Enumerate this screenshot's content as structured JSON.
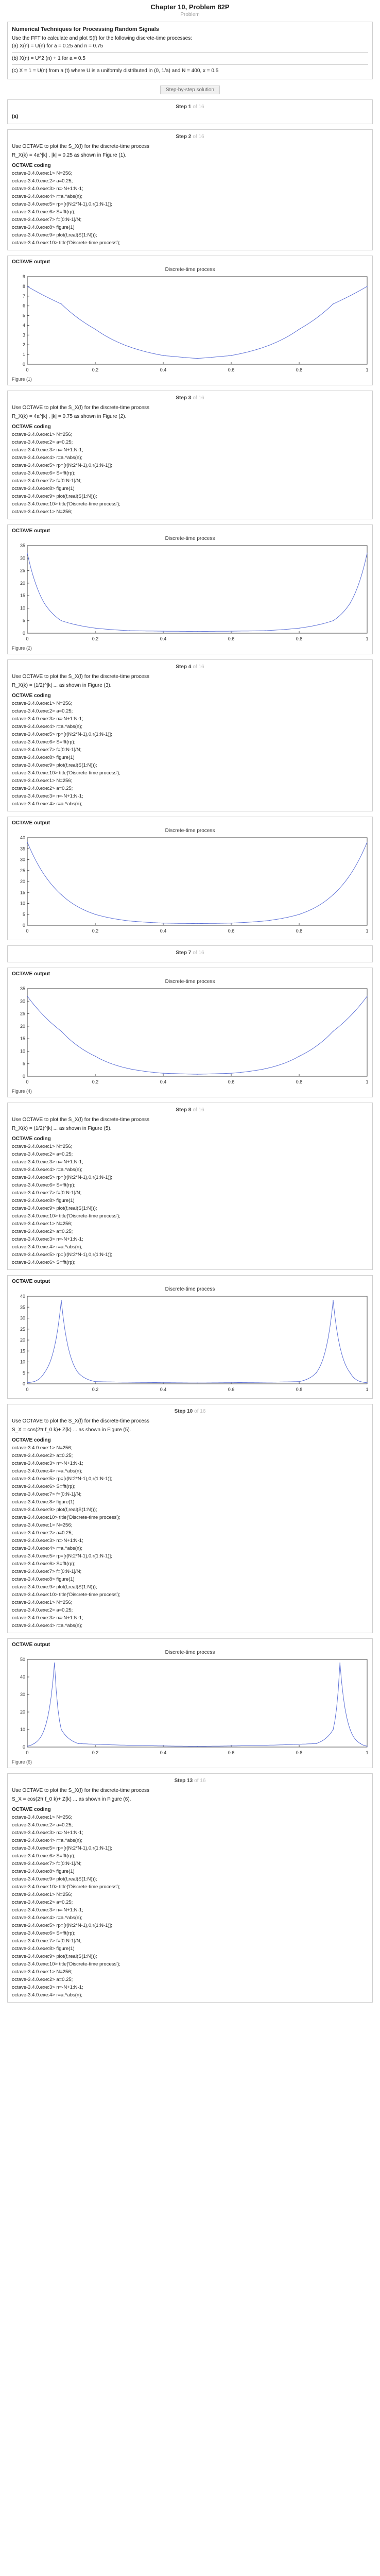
{
  "header": {
    "chapter_title": "Chapter 10, Problem 82P",
    "problem_label": "Problem"
  },
  "problem": {
    "heading": "Numerical Techniques for Processing Random Signals",
    "lines": [
      "Use the FFT to calculate and plot S(f) for the following discrete-time processes:",
      "(a) X(n) = U(n) for a = 0.25 and n = 0.75"
    ],
    "lines2": [
      "(b) X(n) = U^2 (n) + 1 for a = 0.5",
      "(c) X = 1 = U(n) from a (t) where U is a uniformly distributed in (0, 1/a) and N = 400, x = 0.5"
    ]
  },
  "toggle_label": "Step-by-step solution",
  "steps": [
    {
      "num": "Step 1",
      "of": "of 16",
      "body": [
        {
          "kind": "tag",
          "text": "(a)"
        }
      ]
    },
    {
      "num": "Step 2",
      "of": "of 16",
      "body": [
        {
          "kind": "text",
          "text": "Use OCTAVE to plot the  S_X(f) for the discrete-time process"
        },
        {
          "kind": "formula",
          "text": "R_X(k) = 4a^|k| ,  |k| = 0.25  as shown in Figure (1)."
        },
        {
          "kind": "sub",
          "text": "OCTAVE coding"
        },
        {
          "kind": "code",
          "text": "octave-3.4.0.exe:1> N=256;"
        },
        {
          "kind": "code",
          "text": "octave-3.4.0.exe:2> a=0.25;"
        },
        {
          "kind": "code",
          "text": "octave-3.4.0.exe:3> n=-N+1:N-1;"
        },
        {
          "kind": "code",
          "text": "octave-3.4.0.exe:4> r=a.^abs(n);"
        },
        {
          "kind": "code",
          "text": "octave-3.4.0.exe:5> rp=[r(N:2*N-1),0,r(1:N-1)];"
        },
        {
          "kind": "code",
          "text": "octave-3.4.0.exe:6> S=fft(rp);"
        },
        {
          "kind": "code",
          "text": "octave-3.4.0.exe:7> f=[0:N-1]/N;"
        },
        {
          "kind": "code",
          "text": "octave-3.4.0.exe:8> figure(1)"
        },
        {
          "kind": "code",
          "text": "octave-3.4.0.exe:9> plot(f,real(S(1:N)));"
        },
        {
          "kind": "code",
          "text": "octave-3.4.0.exe:10> title('Discrete-time process');"
        }
      ]
    }
  ],
  "output_label": "OCTAVE output",
  "charts": [
    {
      "title": "Discrete-time process",
      "caption": "Figure (1)",
      "y_ticks": [
        "0",
        "1",
        "2",
        "3",
        "4",
        "5",
        "6",
        "7",
        "8",
        "9"
      ],
      "x_ticks": [
        "0",
        "0.2",
        "0.4",
        "0.6",
        "0.8",
        "1"
      ]
    },
    {
      "title": "Discrete-time process",
      "caption": "Figure (2)",
      "y_ticks": [
        "0",
        "5",
        "10",
        "15",
        "20",
        "25",
        "30",
        "35"
      ],
      "x_ticks": [
        "0",
        "0.2",
        "0.4",
        "0.6",
        "0.8",
        "1"
      ]
    },
    {
      "title": "Discrete-time process",
      "caption": "",
      "y_ticks": [
        "0",
        "5",
        "10",
        "15",
        "20",
        "25",
        "30",
        "35",
        "40"
      ],
      "x_ticks": [
        "0",
        "0.2",
        "0.4",
        "0.6",
        "0.8",
        "1"
      ]
    },
    {
      "title": "Discrete-time process",
      "caption": "Figure (4)",
      "y_ticks": [
        "0",
        "5",
        "10",
        "15",
        "20",
        "25",
        "30",
        "35"
      ],
      "x_ticks": [
        "0",
        "0.2",
        "0.4",
        "0.6",
        "0.8",
        "1"
      ]
    },
    {
      "title": "Discrete-time process",
      "caption": "",
      "y_ticks": [
        "0",
        "5",
        "10",
        "15",
        "20",
        "25",
        "30",
        "35",
        "40"
      ],
      "x_ticks": [
        "0",
        "0.2",
        "0.4",
        "0.6",
        "0.8",
        "1"
      ]
    },
    {
      "title": "Discrete-time process",
      "caption": "Figure (6)",
      "y_ticks": [
        "0",
        "10",
        "20",
        "30",
        "40",
        "50"
      ],
      "x_ticks": [
        "0",
        "0.2",
        "0.4",
        "0.6",
        "0.8",
        "1"
      ]
    }
  ],
  "chart_data": [
    {
      "type": "line",
      "title": "Discrete-time process",
      "x": [
        0,
        0.1,
        0.2,
        0.3,
        0.4,
        0.5,
        0.6,
        0.7,
        0.8,
        0.9,
        1.0
      ],
      "values": [
        8,
        6.2,
        3.6,
        1.8,
        0.9,
        0.6,
        0.9,
        1.8,
        3.6,
        6.2,
        8
      ],
      "xlim": [
        0,
        1
      ],
      "ylim": [
        0,
        9
      ]
    },
    {
      "type": "line",
      "title": "Discrete-time process",
      "x": [
        0,
        0.05,
        0.1,
        0.2,
        0.3,
        0.4,
        0.5,
        0.6,
        0.7,
        0.8,
        0.9,
        0.95,
        1.0
      ],
      "values": [
        32,
        12,
        5,
        2,
        1,
        0.8,
        0.7,
        0.8,
        1,
        2,
        5,
        12,
        32
      ],
      "xlim": [
        0,
        1
      ],
      "ylim": [
        0,
        35
      ]
    },
    {
      "type": "line",
      "title": "Discrete-time process",
      "x": [
        0,
        0.1,
        0.2,
        0.3,
        0.4,
        0.5,
        0.6,
        0.7,
        0.8,
        0.9,
        1.0
      ],
      "values": [
        38,
        14,
        5,
        2,
        1,
        0.8,
        1,
        2,
        5,
        14,
        38
      ],
      "xlim": [
        0,
        1
      ],
      "ylim": [
        0,
        40
      ]
    },
    {
      "type": "line",
      "title": "Discrete-time process",
      "x": [
        0,
        0.1,
        0.2,
        0.3,
        0.4,
        0.5,
        0.6,
        0.7,
        0.8,
        0.9,
        1.0
      ],
      "values": [
        32,
        18,
        8,
        3,
        1.2,
        0.8,
        1.2,
        3,
        8,
        18,
        32
      ],
      "xlim": [
        0,
        1
      ],
      "ylim": [
        0,
        35
      ]
    },
    {
      "type": "line",
      "title": "Discrete-time process",
      "x": [
        0,
        0.02,
        0.05,
        0.1,
        0.15,
        0.2,
        0.5,
        0.8,
        0.85,
        0.9,
        0.95,
        0.98,
        1.0
      ],
      "values": [
        0.5,
        1,
        5,
        38,
        5,
        1,
        0.4,
        1,
        5,
        38,
        5,
        1,
        0.5
      ],
      "xlim": [
        0,
        1
      ],
      "ylim": [
        0,
        40
      ]
    },
    {
      "type": "line",
      "title": "Discrete-time process",
      "x": [
        0,
        0.02,
        0.05,
        0.08,
        0.1,
        0.15,
        0.5,
        0.85,
        0.9,
        0.92,
        0.95,
        0.98,
        1.0
      ],
      "values": [
        0.5,
        2,
        10,
        48,
        10,
        2,
        0.4,
        2,
        10,
        48,
        10,
        2,
        0.5
      ],
      "xlim": [
        0,
        1
      ],
      "ylim": [
        0,
        50
      ]
    }
  ],
  "later_steps": [
    {
      "num": "Step 3",
      "of": "of 16",
      "formula": "R_X(k) = 4a^|k| ,  |k| = 0.75  as shown in Figure (2).",
      "code_count": 11
    },
    {
      "num": "Step 4",
      "of": "of 16",
      "formula": "R_X(k) = (1/2)^|k| ... as shown in Figure (3).",
      "code_count": 14
    },
    {
      "num": "Step 7",
      "of": "of 16",
      "formula": "",
      "code_count": 0
    },
    {
      "num": "Step 8",
      "of": "of 16",
      "formula": "R_X(k) = (1/2)^|k| ... as shown in Figure (5).",
      "code_count": 16
    },
    {
      "num": "Step 10",
      "of": "of 16",
      "formula": "S_X = cos(2π f_0 k)+ Z(k) ... as shown in Figure (5).",
      "code_count": 24
    },
    {
      "num": "Step 13",
      "of": "of 16",
      "formula": "S_X = cos(2π f_0 k)+ Z(k) ... as shown in Figure (6).",
      "code_count": 24
    }
  ]
}
